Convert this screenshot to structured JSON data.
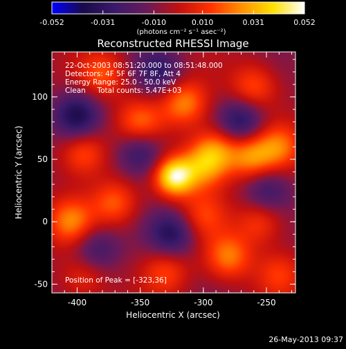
{
  "chart_data": {
    "type": "heatmap",
    "title": "Reconstructed RHESSI Image",
    "colorbar": {
      "ticks": [
        "-0.052",
        "-0.031",
        "-0.010",
        "0.010",
        "0.031",
        "0.052"
      ],
      "range": [
        -0.052,
        0.052
      ],
      "unit_label": "(photons cm⁻² s⁻¹ asec⁻²)",
      "colors": [
        "#0000ff",
        "#1a0a4a",
        "#3a1a6a",
        "#6a1a5a",
        "#c01010",
        "#ff3000",
        "#ff9000",
        "#ffe000",
        "#ffffff"
      ]
    },
    "xlabel": "Heliocentric X (arcsec)",
    "ylabel": "Heliocentric Y (arcsec)",
    "xlim": [
      -420,
      -227
    ],
    "ylim": [
      -57,
      136
    ],
    "xticks": [
      "-400",
      "-350",
      "-300",
      "-250"
    ],
    "yticks": [
      "100",
      "50",
      "0",
      "-50"
    ],
    "annotations": [
      "22-Oct-2003 08:51:20.000 to 08:51:48.000",
      "Detectors: 4F 5F 6F 7F 8F, Att 4",
      "Energy Range: 25.0 - 50.0 keV",
      "Clean     Total counts: 5.47E+03"
    ],
    "peak_label": "Position of Peak = [-323,36]",
    "peak": [
      -323,
      36
    ],
    "sources": [
      {
        "x": -323,
        "y": 36,
        "v": 0.052
      },
      {
        "x": -300,
        "y": 44,
        "v": 0.03
      },
      {
        "x": -290,
        "y": 58,
        "v": 0.028
      },
      {
        "x": -262,
        "y": 52,
        "v": 0.03
      },
      {
        "x": -240,
        "y": 60,
        "v": 0.024
      },
      {
        "x": -350,
        "y": 80,
        "v": 0.024
      },
      {
        "x": -315,
        "y": 95,
        "v": 0.03
      },
      {
        "x": -380,
        "y": 118,
        "v": 0.022
      },
      {
        "x": -260,
        "y": 108,
        "v": 0.022
      },
      {
        "x": -395,
        "y": 55,
        "v": 0.024
      },
      {
        "x": -405,
        "y": 0,
        "v": 0.028
      },
      {
        "x": -370,
        "y": 15,
        "v": 0.024
      },
      {
        "x": -300,
        "y": 5,
        "v": 0.018
      },
      {
        "x": -255,
        "y": 0,
        "v": 0.02
      },
      {
        "x": -330,
        "y": -40,
        "v": 0.02
      },
      {
        "x": -280,
        "y": -28,
        "v": 0.028
      },
      {
        "x": -395,
        "y": -45,
        "v": 0.016
      },
      {
        "x": -240,
        "y": -42,
        "v": 0.018
      },
      {
        "x": -350,
        "y": 55,
        "v": -0.025
      },
      {
        "x": -400,
        "y": 85,
        "v": -0.03
      },
      {
        "x": -270,
        "y": 80,
        "v": -0.028
      },
      {
        "x": -335,
        "y": 120,
        "v": -0.022
      },
      {
        "x": -325,
        "y": -10,
        "v": -0.028
      },
      {
        "x": -385,
        "y": -22,
        "v": -0.02
      },
      {
        "x": -250,
        "y": 25,
        "v": -0.02
      }
    ]
  },
  "footer": {
    "timestamp": "26-May-2013 09:37"
  }
}
